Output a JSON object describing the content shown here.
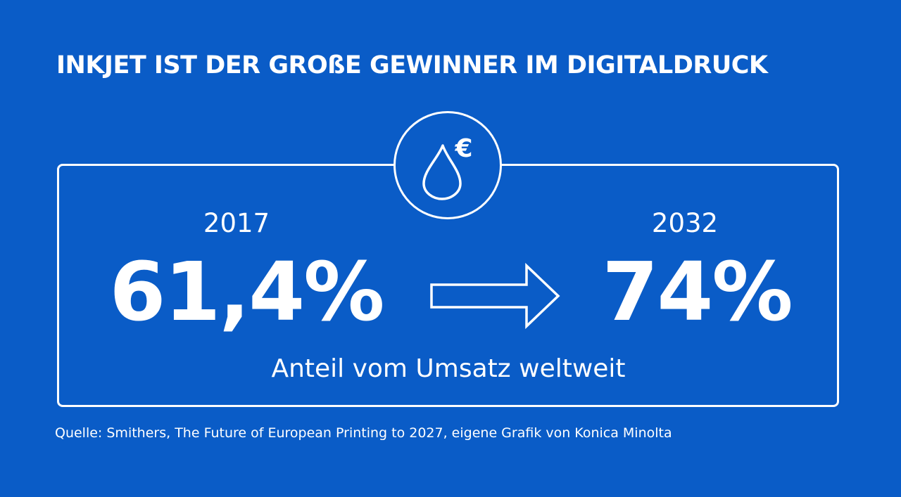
{
  "title": "INKJET IST DER GROßE GEWINNER IM DIGITALDRUCK",
  "badge_icon": "ink-drop-euro-icon",
  "badge_symbol": "€",
  "left": {
    "year": "2017",
    "value": "61,4%"
  },
  "right": {
    "year": "2032",
    "value": "74%"
  },
  "caption": "Anteil vom Umsatz weltweit",
  "source": "Quelle: Smithers, The Future of European Printing to 2027, eigene Grafik von Konica Minolta",
  "colors": {
    "background": "#0a5cc7",
    "foreground": "#ffffff"
  }
}
